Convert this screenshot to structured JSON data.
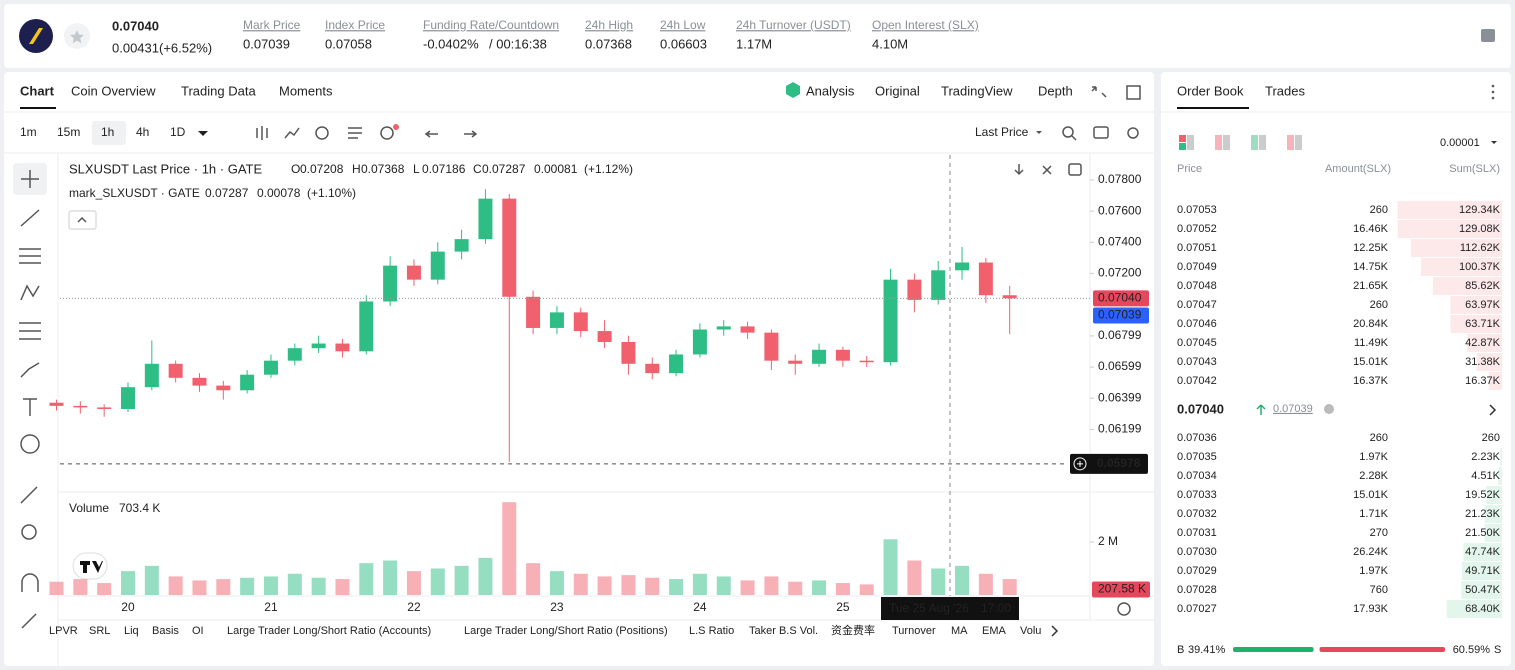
{
  "header": {
    "price": "0.07040",
    "change": "0.00431(+6.52%)",
    "stats": [
      {
        "label": "Mark Price",
        "value": "0.07039"
      },
      {
        "label": "Index Price",
        "value": "0.07058"
      },
      {
        "label": "Funding Rate/Countdown",
        "value": "-0.0402%",
        "extra": "/ 00:16:38"
      },
      {
        "label": "24h High",
        "value": "0.07368"
      },
      {
        "label": "24h Low",
        "value": "0.06603"
      },
      {
        "label": "24h Turnover (USDT)",
        "value": "1.17M"
      },
      {
        "label": "Open Interest (SLX)",
        "value": "4.10M"
      }
    ]
  },
  "tabs": [
    "Chart",
    "Coin Overview",
    "Trading Data",
    "Moments"
  ],
  "views": [
    "Analysis",
    "Original",
    "TradingView",
    "Depth"
  ],
  "intervals": [
    "1m",
    "15m",
    "1h",
    "4h",
    "1D"
  ],
  "price_type": "Last Price",
  "legend": {
    "title": "SLXUSDT Last Price · 1h · GATE",
    "ohlc": [
      {
        "label": "O",
        "value": "0.07208"
      },
      {
        "label": "H",
        "value": "0.07368"
      },
      {
        "label": "L",
        "value": "0.07186"
      },
      {
        "label": "C",
        "value": "0.07287"
      }
    ],
    "change": "0.00081",
    "pct": "(+1.12%)",
    "mark_title": "mark_SLXUSDT · GATE",
    "mark_values": [
      "0.07287",
      "0.00078",
      "(+1.10%)"
    ],
    "volume_title": "Volume",
    "volume_value": "703.4 K"
  },
  "tags": {
    "last": {
      "value": 0.0704,
      "label": "0.07040"
    },
    "mark": {
      "value": 0.07039,
      "label": "0.07039"
    },
    "cross": {
      "value": 0.05978,
      "label": "0.05978"
    },
    "volume": {
      "value": 207580,
      "label": "207.58 K"
    },
    "cross_date": "Tue 25 Aug '26",
    "cross_time": "17:00"
  },
  "indicators": [
    "LPVR",
    "SRL",
    "Liq",
    "Basis",
    "OI",
    "Large Trader Long/Short Ratio (Accounts)",
    "Large Trader Long/Short Ratio (Positions)",
    "L.S Ratio",
    "Taker B.S Vol.",
    "资金费率",
    "Turnover",
    "MA",
    "EMA",
    "Volu"
  ],
  "chart_data": [
    {
      "type": "candlestick",
      "up_color": "#2ebd85",
      "down_color": "#f0616d",
      "ylim": [
        0.0581,
        0.0796
      ],
      "yticks": [
        {
          "value": 0.078,
          "label": "0.07800"
        },
        {
          "value": 0.076,
          "label": "0.07600"
        },
        {
          "value": 0.074,
          "label": "0.07400"
        },
        {
          "value": 0.072,
          "label": "0.07200"
        },
        0.06799,
        0.06599,
        0.06399,
        0.06199
      ],
      "categories": [
        null,
        null,
        null,
        "20",
        null,
        null,
        null,
        null,
        null,
        "21",
        null,
        null,
        null,
        null,
        null,
        "22",
        null,
        null,
        null,
        null,
        null,
        "23",
        null,
        null,
        null,
        null,
        null,
        "24",
        null,
        null,
        null,
        null,
        null,
        "25",
        null,
        null,
        null,
        null,
        null,
        null,
        null
      ],
      "open": [
        0.0637,
        0.0635,
        0.0634,
        0.0633,
        0.0647,
        0.0662,
        0.0653,
        0.0648,
        0.0645,
        0.0655,
        0.0664,
        0.0672,
        0.0675,
        0.067,
        0.0702,
        0.0725,
        0.0716,
        0.0734,
        0.0742,
        0.0768,
        0.0705,
        0.0685,
        0.0695,
        0.0683,
        0.0676,
        0.0662,
        0.0656,
        0.0668,
        0.0684,
        0.0686,
        0.0682,
        0.0664,
        0.0662,
        0.0671,
        0.0664,
        0.0663,
        0.0716,
        0.0703,
        0.0722,
        0.0727,
        0.0706
      ],
      "high": [
        0.0639,
        0.0638,
        0.0636,
        0.065,
        0.0677,
        0.0664,
        0.0656,
        0.0651,
        0.0658,
        0.0668,
        0.0675,
        0.068,
        0.0678,
        0.0706,
        0.0731,
        0.0729,
        0.074,
        0.0748,
        0.0774,
        0.0771,
        0.0709,
        0.0699,
        0.0698,
        0.069,
        0.068,
        0.0666,
        0.0671,
        0.0688,
        0.069,
        0.0689,
        0.0684,
        0.0668,
        0.0675,
        0.0673,
        0.0667,
        0.0723,
        0.072,
        0.0728,
        0.0737,
        0.073,
        0.0712
      ],
      "low": [
        0.0632,
        0.063,
        0.0628,
        0.0631,
        0.0645,
        0.065,
        0.0644,
        0.0639,
        0.0643,
        0.0653,
        0.0661,
        0.0669,
        0.0666,
        0.0668,
        0.0699,
        0.0712,
        0.0713,
        0.0729,
        0.0739,
        0.0599,
        0.0681,
        0.0681,
        0.0679,
        0.0672,
        0.0655,
        0.0652,
        0.0654,
        0.0666,
        0.068,
        0.0678,
        0.0658,
        0.0655,
        0.066,
        0.066,
        0.066,
        0.0661,
        0.0695,
        0.07,
        0.0716,
        0.0701,
        0.0681
      ],
      "close": [
        0.0635,
        0.0634,
        0.0633,
        0.0647,
        0.0662,
        0.0653,
        0.0648,
        0.0645,
        0.0655,
        0.0664,
        0.0672,
        0.0675,
        0.067,
        0.0702,
        0.0725,
        0.0716,
        0.0734,
        0.0742,
        0.0768,
        0.0705,
        0.0685,
        0.0695,
        0.0683,
        0.0676,
        0.0662,
        0.0656,
        0.0668,
        0.0684,
        0.0686,
        0.0682,
        0.0664,
        0.0662,
        0.0671,
        0.0664,
        0.0663,
        0.0716,
        0.0703,
        0.0722,
        0.0727,
        0.0706,
        0.0704
      ]
    },
    {
      "type": "bar",
      "ylim": [
        0,
        3770000
      ],
      "yticks": [
        {
          "value": 2000000,
          "label": "2 M"
        }
      ],
      "values": [
        500000,
        600000,
        450000,
        900000,
        1100000,
        700000,
        550000,
        600000,
        650000,
        700000,
        800000,
        650000,
        600000,
        1200000,
        1300000,
        900000,
        1000000,
        1100000,
        1400000,
        3500000,
        1200000,
        900000,
        800000,
        700000,
        750000,
        650000,
        600000,
        800000,
        700000,
        550000,
        700000,
        500000,
        550000,
        450000,
        400000,
        2100000,
        1300000,
        1000000,
        1100000,
        800000,
        600000
      ]
    }
  ],
  "order_book": {
    "tabs": [
      "Order Book",
      "Trades"
    ],
    "precision": "0.00001",
    "headers": [
      "Price",
      "Amount(SLX)",
      "Sum(SLX)"
    ],
    "asks": [
      {
        "price": "0.07053",
        "amount": "260",
        "sum": {
          "value": 129340,
          "label": "129.34K"
        }
      },
      {
        "price": "0.07052",
        "amount": "16.46K",
        "sum": {
          "value": 129080,
          "label": "129.08K"
        }
      },
      {
        "price": "0.07051",
        "amount": "12.25K",
        "sum": {
          "value": 112620,
          "label": "112.62K"
        }
      },
      {
        "price": "0.07049",
        "amount": "14.75K",
        "sum": {
          "value": 100370,
          "label": "100.37K"
        }
      },
      {
        "price": "0.07048",
        "amount": "21.65K",
        "sum": {
          "value": 85620,
          "label": "85.62K"
        }
      },
      {
        "price": "0.07047",
        "amount": "260",
        "sum": {
          "value": 63970,
          "label": "63.97K"
        }
      },
      {
        "price": "0.07046",
        "amount": "20.84K",
        "sum": {
          "value": 63710,
          "label": "63.71K"
        }
      },
      {
        "price": "0.07045",
        "amount": "11.49K",
        "sum": {
          "value": 42870,
          "label": "42.87K"
        }
      },
      {
        "price": "0.07043",
        "amount": "15.01K",
        "sum": {
          "value": 31380,
          "label": "31.38K"
        }
      },
      {
        "price": "0.07042",
        "amount": "16.37K",
        "sum": {
          "value": 16370,
          "label": "16.37K"
        }
      }
    ],
    "last": "0.07040",
    "mark": "0.07039",
    "bids": [
      {
        "price": "0.07036",
        "amount": "260",
        "sum": {
          "value": 260,
          "label": "260"
        }
      },
      {
        "price": "0.07035",
        "amount": "1.97K",
        "sum": {
          "value": 2230,
          "label": "2.23K"
        }
      },
      {
        "price": "0.07034",
        "amount": "2.28K",
        "sum": {
          "value": 4510,
          "label": "4.51K"
        }
      },
      {
        "price": "0.07033",
        "amount": "15.01K",
        "sum": {
          "value": 19520,
          "label": "19.52K"
        }
      },
      {
        "price": "0.07032",
        "amount": "1.71K",
        "sum": {
          "value": 21230,
          "label": "21.23K"
        }
      },
      {
        "price": "0.07031",
        "amount": "270",
        "sum": {
          "value": 21500,
          "label": "21.50K"
        }
      },
      {
        "price": "0.07030",
        "amount": "26.24K",
        "sum": {
          "value": 47740,
          "label": "47.74K"
        }
      },
      {
        "price": "0.07029",
        "amount": "1.97K",
        "sum": {
          "value": 49710,
          "label": "49.71K"
        }
      },
      {
        "price": "0.07028",
        "amount": "760",
        "sum": {
          "value": 50470,
          "label": "50.47K"
        }
      },
      {
        "price": "0.07027",
        "amount": "17.93K",
        "sum": {
          "value": 68400,
          "label": "68.40K"
        }
      }
    ],
    "buy_label": "B",
    "buy": {
      "value": 39.41,
      "label": "39.41%"
    },
    "sell_label": "S",
    "sell": {
      "value": 60.59,
      "label": "60.59%"
    }
  }
}
